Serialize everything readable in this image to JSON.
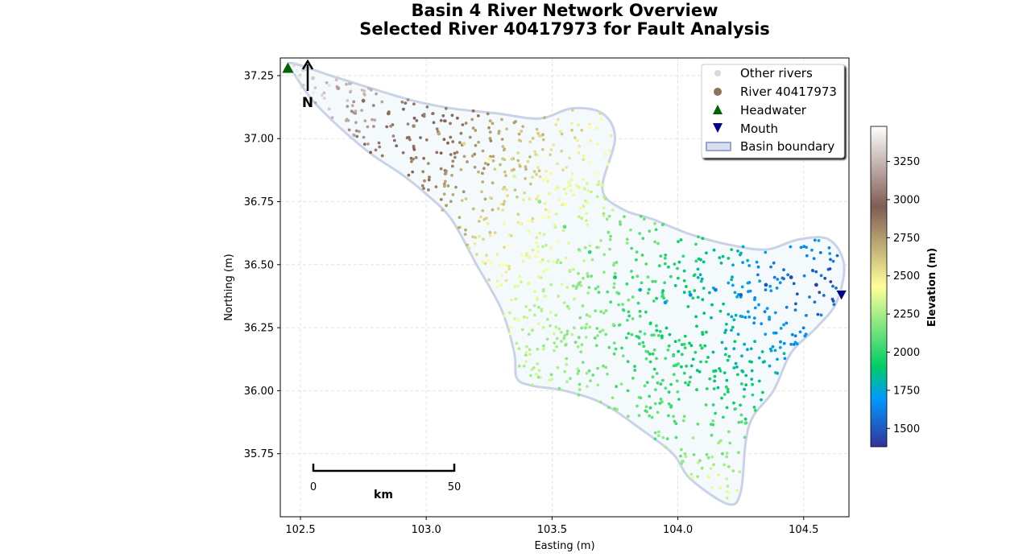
{
  "chart_data": {
    "type": "scatter",
    "title_line1": "Basin 4 River Network Overview",
    "title_line2": "Selected River 40417973 for Fault Analysis",
    "xlabel": "Easting (m)",
    "ylabel": "Northing (m)",
    "xlim": [
      102.42,
      104.68
    ],
    "ylim": [
      35.5,
      37.32
    ],
    "xticks": [
      "102.5",
      "103.0",
      "103.5",
      "104.0",
      "104.5"
    ],
    "xtick_values": [
      102.5,
      103.0,
      103.5,
      104.0,
      104.5
    ],
    "yticks": [
      "35.75",
      "36.00",
      "36.25",
      "36.50",
      "36.75",
      "37.00",
      "37.25"
    ],
    "ytick_values": [
      35.75,
      36.0,
      36.25,
      36.5,
      36.75,
      37.0,
      37.25
    ],
    "grid": true,
    "legend": {
      "placement": "top-right",
      "entries": [
        "Other rivers",
        "River 40417973",
        "Headwater",
        "Mouth",
        "Basin boundary"
      ]
    },
    "colorbar": {
      "label": "Elevation (m)",
      "colormap": "terrain",
      "range": [
        1380,
        3480
      ],
      "ticks": [
        "1500",
        "1750",
        "2000",
        "2250",
        "2500",
        "2750",
        "3000",
        "3250"
      ],
      "tick_values": [
        1500,
        1750,
        2000,
        2250,
        2500,
        2750,
        3000,
        3250
      ]
    },
    "headwater": {
      "x": 102.45,
      "y": 37.28,
      "color": "#006400"
    },
    "mouth": {
      "x": 104.65,
      "y": 36.38,
      "color": "#00008b"
    },
    "basin_boundary": {
      "x": [
        102.46,
        102.62,
        102.78,
        102.95,
        103.1,
        103.28,
        103.45,
        103.58,
        103.7,
        103.75,
        103.7,
        103.78,
        103.9,
        104.05,
        104.2,
        104.35,
        104.48,
        104.6,
        104.66,
        104.63,
        104.55,
        104.45,
        104.38,
        104.3,
        104.27,
        104.25,
        104.2,
        104.05,
        103.98,
        103.85,
        103.7,
        103.55,
        103.42,
        103.36,
        103.35,
        103.3,
        103.2,
        103.1,
        103.0,
        102.9,
        102.78,
        102.65,
        102.55,
        102.48
      ],
      "y": [
        37.3,
        37.25,
        37.2,
        37.15,
        37.12,
        37.1,
        37.08,
        37.12,
        37.1,
        37.0,
        36.8,
        36.72,
        36.68,
        36.62,
        36.58,
        36.56,
        36.6,
        36.6,
        36.5,
        36.35,
        36.25,
        36.15,
        36.0,
        35.9,
        35.8,
        35.6,
        35.55,
        35.65,
        35.75,
        35.85,
        35.95,
        36.0,
        36.02,
        36.05,
        36.15,
        36.32,
        36.5,
        36.68,
        36.78,
        36.86,
        36.94,
        37.05,
        37.15,
        37.25
      ]
    },
    "river_40417973": {
      "points": [
        {
          "x": 102.45,
          "y": 37.28,
          "elev": 3420
        },
        {
          "x": 102.55,
          "y": 37.24,
          "elev": 3300
        },
        {
          "x": 102.65,
          "y": 37.2,
          "elev": 3150
        },
        {
          "x": 102.75,
          "y": 37.15,
          "elev": 3000
        },
        {
          "x": 102.85,
          "y": 37.1,
          "elev": 2900
        },
        {
          "x": 102.95,
          "y": 37.05,
          "elev": 2800
        },
        {
          "x": 103.05,
          "y": 37.02,
          "elev": 2700
        },
        {
          "x": 103.15,
          "y": 36.98,
          "elev": 2550
        },
        {
          "x": 103.25,
          "y": 36.92,
          "elev": 2450
        },
        {
          "x": 103.35,
          "y": 36.85,
          "elev": 2350
        },
        {
          "x": 103.45,
          "y": 36.75,
          "elev": 2200
        },
        {
          "x": 103.55,
          "y": 36.65,
          "elev": 2100
        },
        {
          "x": 103.65,
          "y": 36.55,
          "elev": 2000
        },
        {
          "x": 103.75,
          "y": 36.45,
          "elev": 1900
        },
        {
          "x": 103.85,
          "y": 36.4,
          "elev": 1800
        },
        {
          "x": 103.95,
          "y": 36.35,
          "elev": 1700
        },
        {
          "x": 104.05,
          "y": 36.38,
          "elev": 1650
        },
        {
          "x": 104.15,
          "y": 36.4,
          "elev": 1600
        },
        {
          "x": 104.25,
          "y": 36.38,
          "elev": 1520
        },
        {
          "x": 104.35,
          "y": 36.42,
          "elev": 1480
        },
        {
          "x": 104.45,
          "y": 36.45,
          "elev": 1450
        },
        {
          "x": 104.55,
          "y": 36.42,
          "elev": 1420
        },
        {
          "x": 104.65,
          "y": 36.38,
          "elev": 1400
        }
      ]
    },
    "scale_bar": {
      "start_label": "0",
      "end_label": "50",
      "unit_label": "km"
    },
    "north_arrow": {
      "label": "N"
    }
  }
}
